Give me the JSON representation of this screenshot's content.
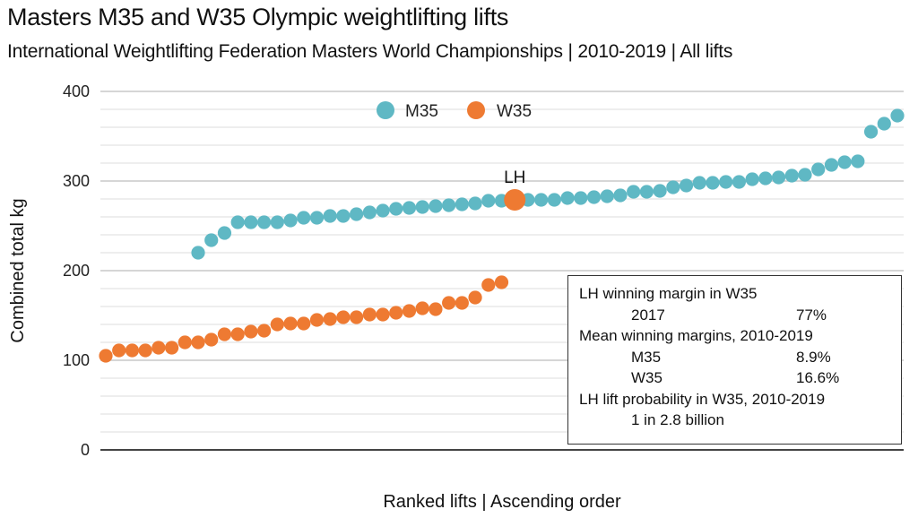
{
  "header": {
    "title": "Masters M35 and W35 Olympic weightlifting lifts",
    "subtitle": "International Weightlifting Federation Masters World Championships | 2010-2019 | All lifts"
  },
  "info_box": {
    "rows": [
      {
        "type": "heading",
        "text": "LH winning margin in W35"
      },
      {
        "type": "pair",
        "key": "2017",
        "value": "77%"
      },
      {
        "type": "heading",
        "text": "Mean winning margins, 2010-2019"
      },
      {
        "type": "pair",
        "key": "M35",
        "value": "8.9%"
      },
      {
        "type": "pair",
        "key": "W35",
        "value": "16.6%"
      },
      {
        "type": "heading",
        "text": "LH lift probability in W35, 2010-2019"
      },
      {
        "type": "pair",
        "key": "1 in 2.8 billion",
        "value": ""
      }
    ]
  },
  "chart_data": {
    "type": "scatter",
    "title": "Masters M35 and W35 Olympic weightlifting lifts",
    "subtitle": "International Weightlifting Federation Masters World Championships | 2010-2019 | All lifts",
    "xlabel": "Ranked lifts | Ascending order",
    "ylabel": "Combined total kg",
    "ylim": [
      0,
      400
    ],
    "xlim": [
      0,
      60
    ],
    "yticks": [
      0,
      100,
      200,
      300,
      400
    ],
    "ytick_labels": [
      "0",
      "100",
      "200",
      "300",
      "400"
    ],
    "minor_grid_step": 20,
    "grid": true,
    "legend": {
      "position": "top-center",
      "entries": [
        "M35",
        "W35"
      ]
    },
    "colors": {
      "M35": "#5fb8c4",
      "W35": "#ee7a32"
    },
    "series": [
      {
        "name": "M35",
        "x": [
          7,
          8,
          9,
          10,
          11,
          12,
          13,
          14,
          15,
          16,
          17,
          18,
          19,
          20,
          21,
          22,
          23,
          24,
          25,
          26,
          27,
          28,
          29,
          30,
          32,
          33,
          34,
          35,
          36,
          37,
          38,
          39,
          40,
          41,
          42,
          43,
          44,
          45,
          46,
          47,
          48,
          49,
          50,
          51,
          52,
          53,
          54,
          55,
          56,
          57,
          58,
          59,
          60
        ],
        "values": [
          220,
          234,
          242,
          254,
          254,
          254,
          254,
          256,
          259,
          259,
          261,
          261,
          263,
          265,
          267,
          269,
          270,
          271,
          272,
          273,
          274,
          275,
          278,
          278,
          279,
          279,
          279,
          281,
          281,
          282,
          283,
          284,
          288,
          288,
          289,
          293,
          295,
          298,
          298,
          299,
          299,
          302,
          303,
          304,
          306,
          307,
          313,
          318,
          321,
          322,
          355,
          364,
          373
        ]
      },
      {
        "name": "W35",
        "x": [
          0,
          1,
          2,
          3,
          4,
          5,
          6,
          7,
          8,
          9,
          10,
          11,
          12,
          13,
          14,
          15,
          16,
          17,
          18,
          19,
          20,
          21,
          22,
          23,
          24,
          25,
          26,
          27,
          28,
          29,
          30
        ],
        "values": [
          105,
          111,
          111,
          111,
          114,
          114,
          120,
          120,
          123,
          129,
          129,
          132,
          133,
          140,
          141,
          141,
          145,
          146,
          148,
          148,
          151,
          151,
          153,
          155,
          158,
          157,
          164,
          164,
          170,
          184,
          187
        ]
      }
    ],
    "annotations": [
      {
        "label": "LH",
        "series": "W35",
        "x": 31,
        "value": 279,
        "highlight": true
      }
    ]
  }
}
